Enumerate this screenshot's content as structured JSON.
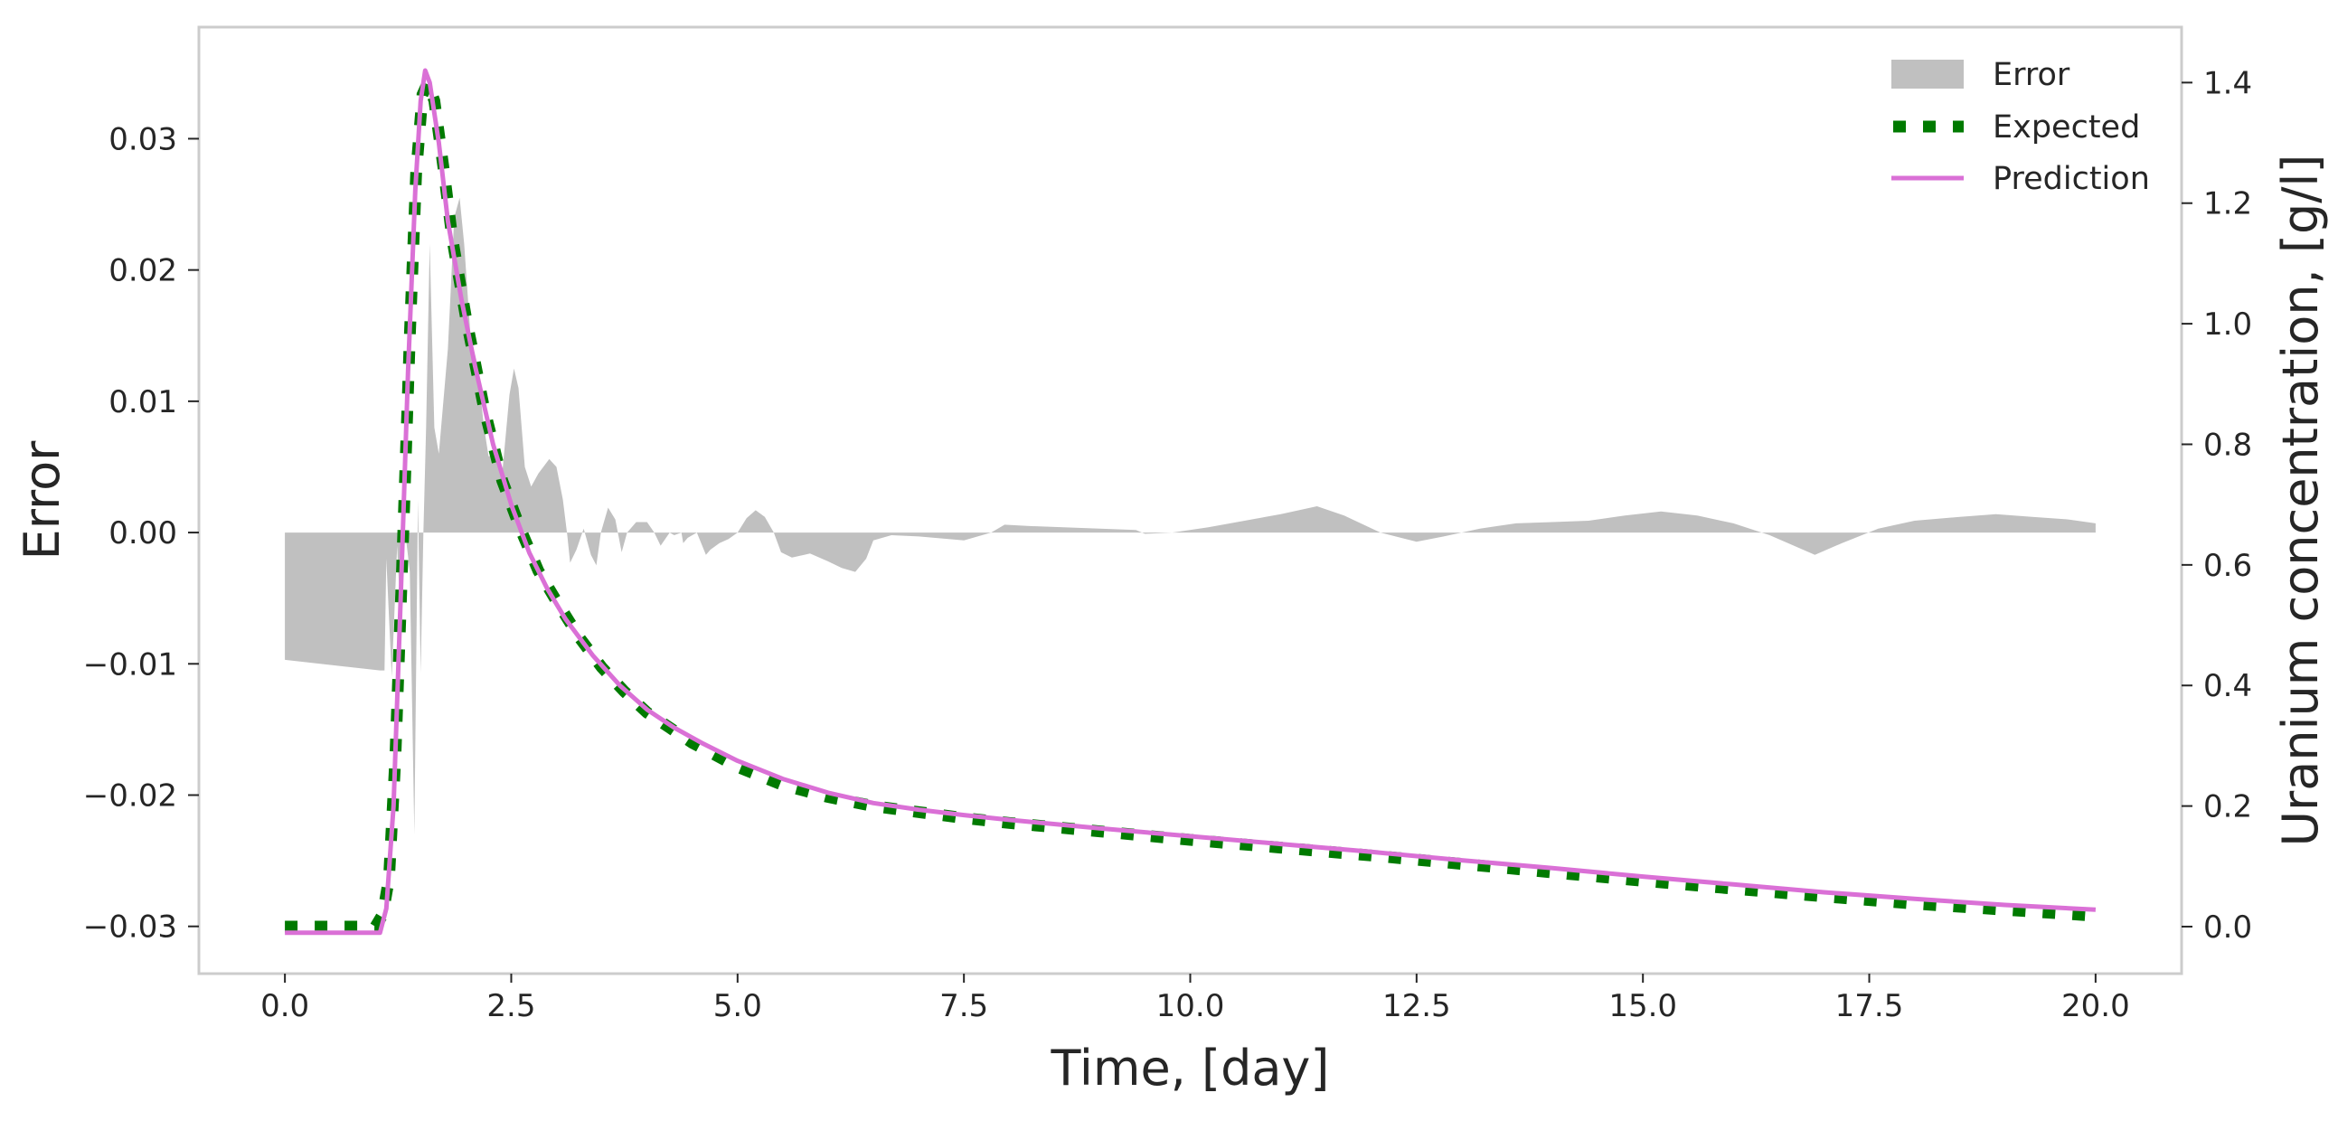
{
  "chart_data": {
    "type": "line",
    "xlabel": "Time, [day]",
    "ylabel": "Error",
    "y2label": "Uranium concentration, [g/l]",
    "xlim": [
      -0.95,
      20.95
    ],
    "ylim": [
      -0.0336,
      0.0385
    ],
    "y2lim": [
      -0.078,
      1.492
    ],
    "x_ticks": [
      0.0,
      2.5,
      5.0,
      7.5,
      10.0,
      12.5,
      15.0,
      17.5,
      20.0
    ],
    "x_tick_labels": [
      "0.0",
      "2.5",
      "5.0",
      "7.5",
      "10.0",
      "12.5",
      "15.0",
      "17.5",
      "20.0"
    ],
    "y_ticks": [
      -0.03,
      -0.02,
      -0.01,
      0.0,
      0.01,
      0.02,
      0.03
    ],
    "y_tick_labels": [
      "−0.03",
      "−0.02",
      "−0.01",
      "0.00",
      "0.01",
      "0.02",
      "0.03"
    ],
    "y2_ticks": [
      0.0,
      0.2,
      0.4,
      0.6,
      0.8,
      1.0,
      1.2,
      1.4
    ],
    "y2_tick_labels": [
      "0.0",
      "0.2",
      "0.4",
      "0.6",
      "0.8",
      "1.0",
      "1.2",
      "1.4"
    ],
    "grid": false,
    "legend_position": "top-right",
    "series": [
      {
        "name": "Error",
        "kind": "area",
        "axis": "left",
        "color": "#c0c0c0",
        "points": [
          [
            0.0,
            0.0
          ],
          [
            0.0,
            -0.0097
          ],
          [
            1.05,
            -0.0105
          ],
          [
            1.1,
            -0.0105
          ],
          [
            1.12,
            -0.002
          ],
          [
            1.18,
            -0.011
          ],
          [
            1.24,
            -0.001
          ],
          [
            1.27,
            -0.0055
          ],
          [
            1.33,
            0.0
          ],
          [
            1.38,
            -0.003
          ],
          [
            1.43,
            -0.023
          ],
          [
            1.47,
            0.0025
          ],
          [
            1.5,
            -0.0107
          ],
          [
            1.53,
            0.0
          ],
          [
            1.56,
            0.008
          ],
          [
            1.6,
            0.022
          ],
          [
            1.65,
            0.008
          ],
          [
            1.7,
            0.006
          ],
          [
            1.75,
            0.01
          ],
          [
            1.8,
            0.014
          ],
          [
            1.87,
            0.024
          ],
          [
            1.93,
            0.0255
          ],
          [
            1.98,
            0.022
          ],
          [
            2.05,
            0.015
          ],
          [
            2.12,
            0.013
          ],
          [
            2.2,
            0.008
          ],
          [
            2.25,
            0.0058
          ],
          [
            2.32,
            0.006
          ],
          [
            2.4,
            0.0045
          ],
          [
            2.48,
            0.0105
          ],
          [
            2.53,
            0.0125
          ],
          [
            2.58,
            0.011
          ],
          [
            2.65,
            0.005
          ],
          [
            2.72,
            0.0035
          ],
          [
            2.8,
            0.0045
          ],
          [
            2.92,
            0.0056
          ],
          [
            3.0,
            0.005
          ],
          [
            3.07,
            0.0025
          ],
          [
            3.12,
            -0.0003
          ],
          [
            3.15,
            -0.0023
          ],
          [
            3.22,
            -0.0013
          ],
          [
            3.3,
            0.0003
          ],
          [
            3.38,
            -0.0017
          ],
          [
            3.44,
            -0.0025
          ],
          [
            3.49,
            0.0
          ],
          [
            3.57,
            0.0019
          ],
          [
            3.65,
            0.001
          ],
          [
            3.72,
            -0.0015
          ],
          [
            3.78,
            0.0
          ],
          [
            3.88,
            0.0008
          ],
          [
            4.0,
            0.0008
          ],
          [
            4.08,
            0.0
          ],
          [
            4.15,
            -0.001
          ],
          [
            4.25,
            0.0
          ],
          [
            4.3,
            -0.0002
          ],
          [
            4.38,
            0.0
          ],
          [
            4.4,
            -0.0008
          ],
          [
            4.45,
            -0.0004
          ],
          [
            4.55,
            0.0
          ],
          [
            4.65,
            -0.0017
          ],
          [
            4.7,
            -0.0013
          ],
          [
            4.8,
            -0.0008
          ],
          [
            4.9,
            -0.0005
          ],
          [
            5.0,
            0.0
          ],
          [
            5.1,
            0.0011
          ],
          [
            5.2,
            0.0017
          ],
          [
            5.3,
            0.0012
          ],
          [
            5.4,
            0.0
          ],
          [
            5.48,
            -0.0015
          ],
          [
            5.6,
            -0.0019
          ],
          [
            5.8,
            -0.0016
          ],
          [
            6.0,
            -0.0022
          ],
          [
            6.15,
            -0.0027
          ],
          [
            6.3,
            -0.003
          ],
          [
            6.42,
            -0.002
          ],
          [
            6.5,
            -0.0006
          ],
          [
            6.7,
            -0.0002
          ],
          [
            7.0,
            -0.0003
          ],
          [
            7.5,
            -0.0006
          ],
          [
            7.8,
            0.0
          ],
          [
            7.95,
            0.0006
          ],
          [
            8.2,
            0.0005
          ],
          [
            8.6,
            0.0004
          ],
          [
            9.0,
            0.0003
          ],
          [
            9.4,
            0.0002
          ],
          [
            9.5,
            -0.0001
          ],
          [
            9.8,
            0.0
          ],
          [
            10.2,
            0.0004
          ],
          [
            10.6,
            0.0009
          ],
          [
            11.0,
            0.0014
          ],
          [
            11.4,
            0.002
          ],
          [
            11.7,
            0.0013
          ],
          [
            12.1,
            0.0
          ],
          [
            12.5,
            -0.0007
          ],
          [
            12.8,
            -0.0003
          ],
          [
            13.2,
            0.0003
          ],
          [
            13.6,
            0.0007
          ],
          [
            14.0,
            0.0008
          ],
          [
            14.4,
            0.0009
          ],
          [
            14.8,
            0.0013
          ],
          [
            15.2,
            0.0016
          ],
          [
            15.6,
            0.0013
          ],
          [
            16.0,
            0.0007
          ],
          [
            16.4,
            -0.0002
          ],
          [
            16.9,
            -0.0017
          ],
          [
            17.2,
            -0.0008
          ],
          [
            17.6,
            0.0003
          ],
          [
            18.0,
            0.0009
          ],
          [
            18.5,
            0.0012
          ],
          [
            18.9,
            0.0014
          ],
          [
            19.3,
            0.0012
          ],
          [
            19.7,
            0.001
          ],
          [
            20.0,
            0.0007
          ],
          [
            20.0,
            0.0
          ]
        ]
      },
      {
        "name": "Expected",
        "kind": "line",
        "axis": "right",
        "color": "#007a00",
        "dash": "dotted",
        "points": [
          [
            0.0,
            0.0
          ],
          [
            0.5,
            0.0
          ],
          [
            1.0,
            0.0
          ],
          [
            1.08,
            0.02
          ],
          [
            1.15,
            0.08
          ],
          [
            1.22,
            0.28
          ],
          [
            1.3,
            0.62
          ],
          [
            1.38,
            0.98
          ],
          [
            1.45,
            1.25
          ],
          [
            1.52,
            1.38
          ],
          [
            1.58,
            1.4
          ],
          [
            1.65,
            1.37
          ],
          [
            1.75,
            1.26
          ],
          [
            1.85,
            1.14
          ],
          [
            2.0,
            1.01
          ],
          [
            2.2,
            0.86
          ],
          [
            2.4,
            0.74
          ],
          [
            2.6,
            0.66
          ],
          [
            2.8,
            0.59
          ],
          [
            3.0,
            0.54
          ],
          [
            3.25,
            0.48
          ],
          [
            3.5,
            0.43
          ],
          [
            3.75,
            0.39
          ],
          [
            4.0,
            0.355
          ],
          [
            4.25,
            0.33
          ],
          [
            4.5,
            0.305
          ],
          [
            4.75,
            0.285
          ],
          [
            5.0,
            0.265
          ],
          [
            5.5,
            0.235
          ],
          [
            6.0,
            0.215
          ],
          [
            6.5,
            0.2
          ],
          [
            7.0,
            0.19
          ],
          [
            7.5,
            0.18
          ],
          [
            8.0,
            0.172
          ],
          [
            9.0,
            0.158
          ],
          [
            10.0,
            0.144
          ],
          [
            11.0,
            0.131
          ],
          [
            12.0,
            0.118
          ],
          [
            13.0,
            0.104
          ],
          [
            14.0,
            0.09
          ],
          [
            15.0,
            0.076
          ],
          [
            16.0,
            0.063
          ],
          [
            17.0,
            0.05
          ],
          [
            18.0,
            0.038
          ],
          [
            19.0,
            0.028
          ],
          [
            20.0,
            0.018
          ]
        ]
      },
      {
        "name": "Prediction",
        "kind": "line",
        "axis": "right",
        "color": "#da70d6",
        "points": [
          [
            0.0,
            -0.01
          ],
          [
            0.5,
            -0.01
          ],
          [
            1.05,
            -0.01
          ],
          [
            1.12,
            0.03
          ],
          [
            1.2,
            0.2
          ],
          [
            1.28,
            0.55
          ],
          [
            1.36,
            0.92
          ],
          [
            1.44,
            1.22
          ],
          [
            1.5,
            1.37
          ],
          [
            1.55,
            1.42
          ],
          [
            1.6,
            1.4
          ],
          [
            1.7,
            1.3
          ],
          [
            1.8,
            1.17
          ],
          [
            1.95,
            1.04
          ],
          [
            2.1,
            0.93
          ],
          [
            2.3,
            0.8
          ],
          [
            2.5,
            0.7
          ],
          [
            2.7,
            0.62
          ],
          [
            2.9,
            0.56
          ],
          [
            3.1,
            0.51
          ],
          [
            3.4,
            0.45
          ],
          [
            3.7,
            0.4
          ],
          [
            4.0,
            0.36
          ],
          [
            4.3,
            0.33
          ],
          [
            4.6,
            0.305
          ],
          [
            5.0,
            0.275
          ],
          [
            5.5,
            0.245
          ],
          [
            6.0,
            0.222
          ],
          [
            6.5,
            0.205
          ],
          [
            7.0,
            0.194
          ],
          [
            7.5,
            0.185
          ],
          [
            8.0,
            0.177
          ],
          [
            9.0,
            0.163
          ],
          [
            10.0,
            0.15
          ],
          [
            11.0,
            0.137
          ],
          [
            12.0,
            0.124
          ],
          [
            13.0,
            0.11
          ],
          [
            14.0,
            0.097
          ],
          [
            15.0,
            0.083
          ],
          [
            16.0,
            0.07
          ],
          [
            17.0,
            0.057
          ],
          [
            18.0,
            0.046
          ],
          [
            19.0,
            0.036
          ],
          [
            20.0,
            0.028
          ]
        ]
      }
    ]
  }
}
